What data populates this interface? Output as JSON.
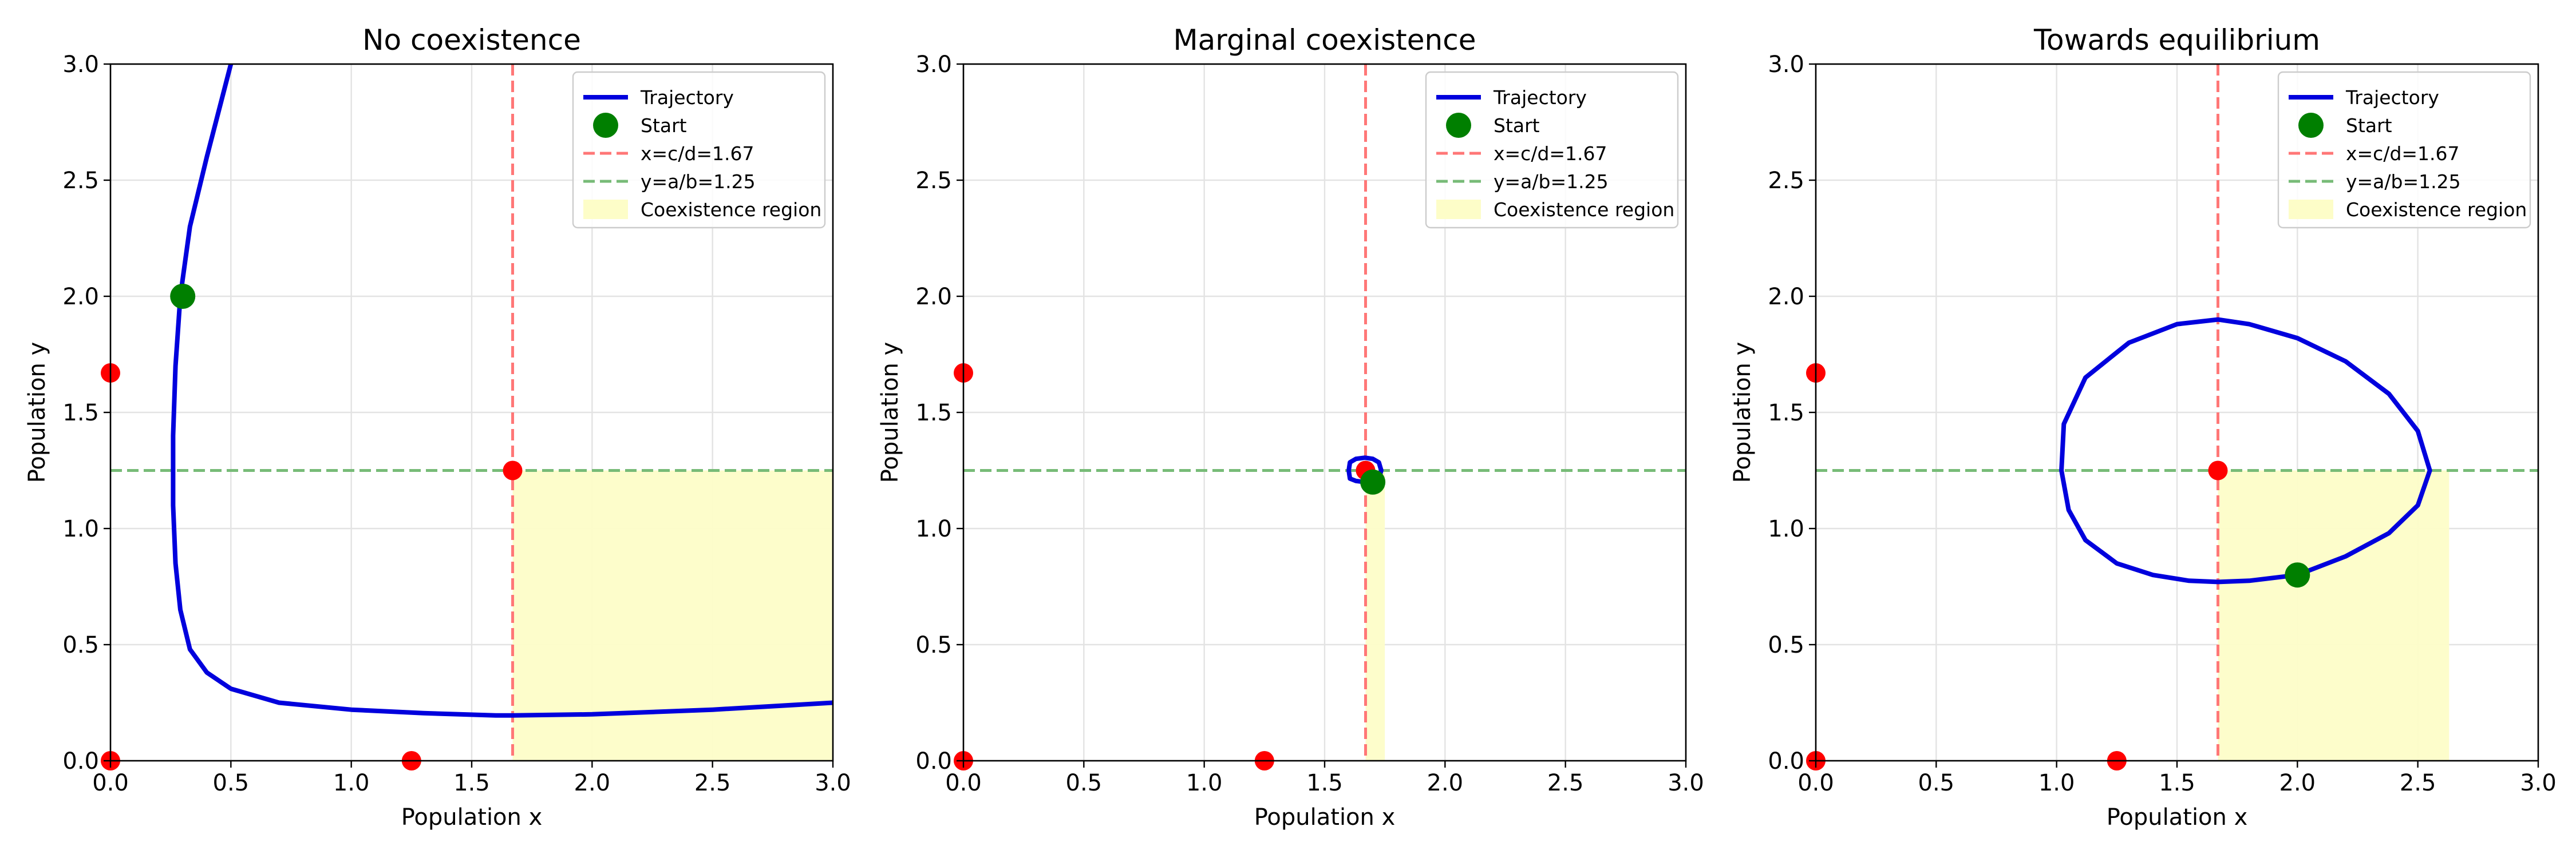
{
  "chart_data": [
    {
      "type": "line",
      "title": "No coexistence",
      "xlabel": "Population x",
      "ylabel": "Population y",
      "xlim": [
        0,
        3
      ],
      "ylim": [
        0,
        3
      ],
      "xticks": [
        "0.0",
        "0.5",
        "1.0",
        "1.5",
        "2.0",
        "2.5",
        "3.0"
      ],
      "yticks": [
        "0.0",
        "0.5",
        "1.0",
        "1.5",
        "2.0",
        "2.5",
        "3.0"
      ],
      "grid": true,
      "legend_position": "top-right",
      "legend": [
        "Trajectory",
        "Start",
        "x=c/d=1.67",
        "y=a/b=1.25",
        "Coexistence region"
      ],
      "trajectory": {
        "name": "Trajectory",
        "color": "#0000dd",
        "x": [
          0.5,
          0.4,
          0.33,
          0.29,
          0.27,
          0.26,
          0.26,
          0.27,
          0.29,
          0.33,
          0.4,
          0.5,
          0.7,
          1.0,
          1.3,
          1.6,
          1.67,
          2.0,
          2.5,
          3.0
        ],
        "y": [
          3.0,
          2.6,
          2.3,
          2.0,
          1.7,
          1.4,
          1.1,
          0.85,
          0.65,
          0.48,
          0.38,
          0.31,
          0.25,
          0.22,
          0.205,
          0.195,
          0.195,
          0.2,
          0.22,
          0.25
        ]
      },
      "start": {
        "label": "Start",
        "x": 0.3,
        "y": 2.0,
        "color": "#007f00"
      },
      "equilibria": {
        "color": "#ff0000",
        "x": [
          0,
          0,
          1.25,
          1.67
        ],
        "y": [
          1.67,
          0,
          0,
          1.25
        ]
      },
      "vline": {
        "label": "x=c/d=1.67",
        "value": 1.67,
        "color": "#ff7777"
      },
      "hline": {
        "label": "y=a/b=1.25",
        "value": 1.25,
        "color": "#77bb77"
      },
      "coexistence_region": {
        "label": "Coexistence region",
        "x": [
          1.67,
          3.0
        ],
        "y": [
          0,
          1.25
        ],
        "color": "#fdfdc8"
      }
    },
    {
      "type": "line",
      "title": "Marginal coexistence",
      "xlabel": "Population x",
      "ylabel": "Population y",
      "xlim": [
        0,
        3
      ],
      "ylim": [
        0,
        3
      ],
      "xticks": [
        "0.0",
        "0.5",
        "1.0",
        "1.5",
        "2.0",
        "2.5",
        "3.0"
      ],
      "yticks": [
        "0.0",
        "0.5",
        "1.0",
        "1.5",
        "2.0",
        "2.5",
        "3.0"
      ],
      "grid": true,
      "legend_position": "top-right",
      "legend": [
        "Trajectory",
        "Start",
        "x=c/d=1.67",
        "y=a/b=1.25",
        "Coexistence region"
      ],
      "trajectory": {
        "name": "Trajectory",
        "color": "#0000dd",
        "x": [
          1.7,
          1.725,
          1.735,
          1.725,
          1.7,
          1.667,
          1.63,
          1.605,
          1.6,
          1.605,
          1.63,
          1.667,
          1.7
        ],
        "y": [
          1.2,
          1.215,
          1.25,
          1.285,
          1.3,
          1.305,
          1.3,
          1.285,
          1.25,
          1.215,
          1.205,
          1.2,
          1.2
        ]
      },
      "start": {
        "label": "Start",
        "x": 1.7,
        "y": 1.2,
        "color": "#007f00"
      },
      "equilibria": {
        "color": "#ff0000",
        "x": [
          0,
          0,
          1.25,
          1.67
        ],
        "y": [
          1.67,
          0,
          0,
          1.25
        ]
      },
      "vline": {
        "label": "x=c/d=1.67",
        "value": 1.67,
        "color": "#ff7777"
      },
      "hline": {
        "label": "y=a/b=1.25",
        "value": 1.25,
        "color": "#77bb77"
      },
      "coexistence_region": {
        "label": "Coexistence region",
        "x": [
          1.67,
          1.75
        ],
        "y": [
          0,
          1.25
        ],
        "color": "#fdfdc8"
      }
    },
    {
      "type": "line",
      "title": "Towards equilibrium",
      "xlabel": "Population x",
      "ylabel": "Population y",
      "xlim": [
        0,
        3
      ],
      "ylim": [
        0,
        3
      ],
      "xticks": [
        "0.0",
        "0.5",
        "1.0",
        "1.5",
        "2.0",
        "2.5",
        "3.0"
      ],
      "yticks": [
        "0.0",
        "0.5",
        "1.0",
        "1.5",
        "2.0",
        "2.5",
        "3.0"
      ],
      "grid": true,
      "legend_position": "top-right",
      "legend": [
        "Trajectory",
        "Start",
        "x=c/d=1.67",
        "y=a/b=1.25",
        "Coexistence region"
      ],
      "trajectory": {
        "name": "Trajectory",
        "color": "#0000dd",
        "x": [
          2.0,
          2.2,
          2.38,
          2.5,
          2.55,
          2.5,
          2.38,
          2.2,
          2.0,
          1.8,
          1.67,
          1.5,
          1.3,
          1.12,
          1.03,
          1.02,
          1.05,
          1.12,
          1.25,
          1.4,
          1.55,
          1.67,
          1.8,
          2.0
        ],
        "y": [
          0.8,
          0.88,
          0.98,
          1.1,
          1.25,
          1.42,
          1.58,
          1.72,
          1.82,
          1.88,
          1.9,
          1.88,
          1.8,
          1.65,
          1.45,
          1.25,
          1.08,
          0.95,
          0.85,
          0.8,
          0.775,
          0.77,
          0.775,
          0.8
        ]
      },
      "start": {
        "label": "Start",
        "x": 2.0,
        "y": 0.8,
        "color": "#007f00"
      },
      "equilibria": {
        "color": "#ff0000",
        "x": [
          0,
          0,
          1.25,
          1.67
        ],
        "y": [
          1.67,
          0,
          0,
          1.25
        ]
      },
      "vline": {
        "label": "x=c/d=1.67",
        "value": 1.67,
        "color": "#ff7777"
      },
      "hline": {
        "label": "y=a/b=1.25",
        "value": 1.25,
        "color": "#77bb77"
      },
      "coexistence_region": {
        "label": "Coexistence region",
        "x": [
          1.67,
          2.63
        ],
        "y": [
          0,
          1.25
        ],
        "color": "#fdfdc8"
      }
    }
  ]
}
